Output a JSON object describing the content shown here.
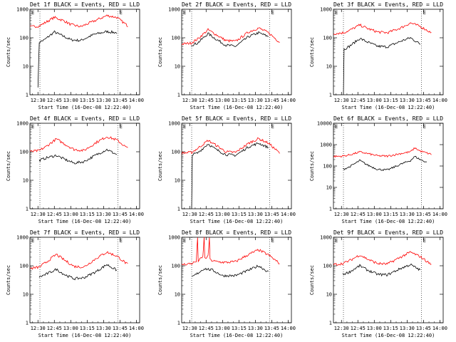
{
  "chart_data": [
    {
      "type": "line",
      "title": "Det 1f BLACK = Events, RED = LLD",
      "xlabel": "Start Time (16-Dec-08 12:22:40)",
      "ylabel": "Counts/sec",
      "ylim": [
        1,
        1000
      ],
      "ylog": true,
      "marker": "E",
      "x_ticks": [
        "12:30",
        "12:45",
        "13:00",
        "13:15",
        "13:30",
        "13:45",
        "14:00"
      ],
      "y_ticks": [
        "1",
        "10",
        "100",
        "1000"
      ],
      "series": [
        {
          "color": "#000000",
          "values": [
            [
              12.5,
              2
            ],
            [
              12.52,
              70
            ],
            [
              12.6,
              85
            ],
            [
              12.75,
              160
            ],
            [
              12.9,
              110
            ],
            [
              13.0,
              85
            ],
            [
              13.15,
              80
            ],
            [
              13.35,
              130
            ],
            [
              13.55,
              165
            ],
            [
              13.7,
              150
            ]
          ]
        },
        {
          "color": "#ff0000",
          "values": [
            [
              12.38,
              240
            ],
            [
              12.52,
              260
            ],
            [
              12.6,
              330
            ],
            [
              12.75,
              520
            ],
            [
              12.9,
              390
            ],
            [
              13.0,
              290
            ],
            [
              13.15,
              245
            ],
            [
              13.35,
              380
            ],
            [
              13.55,
              600
            ],
            [
              13.7,
              520
            ],
            [
              13.87,
              260
            ]
          ]
        }
      ]
    },
    {
      "type": "line",
      "title": "Det 2f BLACK = Events, RED = LLD",
      "xlabel": "Start Time (16-Dec-08 12:22:40)",
      "ylabel": "Counts/sec",
      "ylim": [
        1,
        1000
      ],
      "ylog": true,
      "marker": "E",
      "x_ticks": [
        "12:30",
        "12:45",
        "13:00",
        "13:15",
        "13:30",
        "13:45",
        "14:00"
      ],
      "y_ticks": [
        "1",
        "10",
        "100",
        "1000"
      ],
      "series": [
        {
          "color": "#000000",
          "values": [
            [
              12.52,
              55
            ],
            [
              12.62,
              65
            ],
            [
              12.78,
              140
            ],
            [
              12.9,
              90
            ],
            [
              13.05,
              55
            ],
            [
              13.2,
              50
            ],
            [
              13.4,
              110
            ],
            [
              13.55,
              150
            ],
            [
              13.7,
              110
            ]
          ]
        },
        {
          "color": "#ff0000",
          "values": [
            [
              12.38,
              60
            ],
            [
              12.52,
              65
            ],
            [
              12.62,
              90
            ],
            [
              12.78,
              190
            ],
            [
              12.9,
              130
            ],
            [
              13.05,
              80
            ],
            [
              13.2,
              75
            ],
            [
              13.4,
              160
            ],
            [
              13.55,
              220
            ],
            [
              13.7,
              150
            ],
            [
              13.87,
              70
            ]
          ]
        }
      ]
    },
    {
      "type": "line",
      "title": "Det 3f BLACK = Events, RED = LLD",
      "xlabel": "Start Time (16-Dec-08 12:22:40)",
      "ylabel": "Counts/sec",
      "ylim": [
        1,
        1000
      ],
      "ylog": true,
      "marker": "E",
      "x_ticks": [
        "12:30",
        "12:45",
        "13:00",
        "13:15",
        "13:30",
        "13:45",
        "14:00"
      ],
      "y_ticks": [
        "1",
        "10",
        "100",
        "1000"
      ],
      "series": [
        {
          "color": "#000000",
          "values": [
            [
              12.53,
              1
            ],
            [
              12.54,
              40
            ],
            [
              12.62,
              50
            ],
            [
              12.78,
              95
            ],
            [
              12.9,
              70
            ],
            [
              13.05,
              50
            ],
            [
              13.2,
              48
            ],
            [
              13.4,
              75
            ],
            [
              13.55,
              100
            ],
            [
              13.7,
              60
            ]
          ]
        },
        {
          "color": "#ff0000",
          "values": [
            [
              12.38,
              140
            ],
            [
              12.53,
              150
            ],
            [
              12.62,
              180
            ],
            [
              12.78,
              280
            ],
            [
              12.9,
              210
            ],
            [
              13.05,
              160
            ],
            [
              13.2,
              150
            ],
            [
              13.4,
              220
            ],
            [
              13.55,
              330
            ],
            [
              13.7,
              250
            ],
            [
              13.87,
              150
            ]
          ]
        }
      ]
    },
    {
      "type": "line",
      "title": "Det 4f BLACK = Events, RED = LLD",
      "xlabel": "Start Time (16-Dec-08 12:22:40)",
      "ylabel": "Counts/sec",
      "ylim": [
        1,
        1000
      ],
      "ylog": true,
      "marker": "E",
      "x_ticks": [
        "12:30",
        "12:45",
        "13:00",
        "13:15",
        "13:30",
        "13:45",
        "14:00"
      ],
      "y_ticks": [
        "1",
        "10",
        "100",
        "1000"
      ],
      "series": [
        {
          "color": "#000000",
          "values": [
            [
              12.52,
              50
            ],
            [
              12.62,
              60
            ],
            [
              12.78,
              75
            ],
            [
              12.9,
              55
            ],
            [
              13.05,
              40
            ],
            [
              13.2,
              45
            ],
            [
              13.4,
              80
            ],
            [
              13.55,
              120
            ],
            [
              13.7,
              80
            ]
          ]
        },
        {
          "color": "#ff0000",
          "values": [
            [
              12.38,
              100
            ],
            [
              12.52,
              110
            ],
            [
              12.62,
              150
            ],
            [
              12.78,
              280
            ],
            [
              12.9,
              190
            ],
            [
              13.05,
              120
            ],
            [
              13.2,
              110
            ],
            [
              13.4,
              220
            ],
            [
              13.55,
              340
            ],
            [
              13.7,
              260
            ],
            [
              13.87,
              130
            ]
          ]
        }
      ]
    },
    {
      "type": "line",
      "title": "Det 5f BLACK = Events, RED = LLD",
      "xlabel": "Start Time (16-Dec-08 12:22:40)",
      "ylabel": "Counts/sec",
      "ylim": [
        1,
        1000
      ],
      "ylog": true,
      "marker": "E",
      "x_ticks": [
        "12:30",
        "12:45",
        "13:00",
        "13:15",
        "13:30",
        "13:45",
        "14:00"
      ],
      "y_ticks": [
        "1",
        "10",
        "100",
        "1000"
      ],
      "series": [
        {
          "color": "#000000",
          "values": [
            [
              12.53,
              1
            ],
            [
              12.54,
              80
            ],
            [
              12.62,
              90
            ],
            [
              12.78,
              190
            ],
            [
              12.9,
              120
            ],
            [
              13.05,
              80
            ],
            [
              13.2,
              75
            ],
            [
              13.4,
              150
            ],
            [
              13.55,
              200
            ],
            [
              13.7,
              140
            ]
          ]
        },
        {
          "color": "#ff0000",
          "values": [
            [
              12.38,
              90
            ],
            [
              12.53,
              95
            ],
            [
              12.62,
              130
            ],
            [
              12.78,
              250
            ],
            [
              12.9,
              170
            ],
            [
              13.05,
              100
            ],
            [
              13.2,
              95
            ],
            [
              13.4,
              200
            ],
            [
              13.55,
              290
            ],
            [
              13.7,
              200
            ],
            [
              13.87,
              90
            ]
          ]
        }
      ]
    },
    {
      "type": "line",
      "title": "Det 6f BLACK = Events, RED = LLD",
      "xlabel": "Start Time (16-Dec-08 12:22:40)",
      "ylabel": "Counts/sec",
      "ylim": [
        1,
        10000
      ],
      "ylog": true,
      "marker": "E",
      "x_ticks": [
        "12:30",
        "12:45",
        "13:00",
        "13:15",
        "13:30",
        "13:45",
        "14:00"
      ],
      "y_ticks": [
        "1",
        "10",
        "100",
        "1000",
        "10000"
      ],
      "series": [
        {
          "color": "#000000",
          "values": [
            [
              12.52,
              70
            ],
            [
              12.62,
              90
            ],
            [
              12.78,
              180
            ],
            [
              12.9,
              110
            ],
            [
              13.05,
              70
            ],
            [
              13.2,
              65
            ],
            [
              13.4,
              120
            ],
            [
              13.55,
              180
            ],
            [
              13.62,
              280
            ],
            [
              13.7,
              200
            ],
            [
              13.8,
              150
            ]
          ]
        },
        {
          "color": "#ff0000",
          "values": [
            [
              12.38,
              280
            ],
            [
              12.52,
              290
            ],
            [
              12.62,
              330
            ],
            [
              12.78,
              450
            ],
            [
              12.9,
              380
            ],
            [
              13.05,
              300
            ],
            [
              13.2,
              290
            ],
            [
              13.4,
              380
            ],
            [
              13.55,
              460
            ],
            [
              13.62,
              700
            ],
            [
              13.7,
              500
            ],
            [
              13.87,
              350
            ]
          ]
        }
      ]
    },
    {
      "type": "line",
      "title": "Det 7f BLACK = Events, RED = LLD",
      "xlabel": "Start Time (16-Dec-08 12:22:40)",
      "ylabel": "Counts/sec",
      "ylim": [
        1,
        1000
      ],
      "ylog": true,
      "marker": "E",
      "x_ticks": [
        "12:30",
        "12:45",
        "13:00",
        "13:15",
        "13:30",
        "13:45",
        "14:00"
      ],
      "y_ticks": [
        "1",
        "10",
        "100",
        "1000"
      ],
      "series": [
        {
          "color": "#000000",
          "values": [
            [
              12.52,
              40
            ],
            [
              12.62,
              50
            ],
            [
              12.78,
              75
            ],
            [
              12.9,
              50
            ],
            [
              13.05,
              35
            ],
            [
              13.2,
              38
            ],
            [
              13.4,
              65
            ],
            [
              13.55,
              110
            ],
            [
              13.7,
              70
            ]
          ]
        },
        {
          "color": "#ff0000",
          "values": [
            [
              12.38,
              80
            ],
            [
              12.52,
              90
            ],
            [
              12.62,
              130
            ],
            [
              12.78,
              250
            ],
            [
              12.9,
              160
            ],
            [
              13.05,
              95
            ],
            [
              13.2,
              90
            ],
            [
              13.4,
              190
            ],
            [
              13.55,
              300
            ],
            [
              13.7,
              220
            ],
            [
              13.87,
              110
            ]
          ]
        }
      ]
    },
    {
      "type": "line",
      "title": "Det 8f BLACK = Events, RED = LLD",
      "xlabel": "Start Time (16-Dec-08 12:22:40)",
      "ylabel": "Counts/sec",
      "ylim": [
        1,
        1000
      ],
      "ylog": true,
      "marker": "E",
      "x_ticks": [
        "12:30",
        "12:45",
        "13:00",
        "13:15",
        "13:30",
        "13:45",
        "14:00"
      ],
      "y_ticks": [
        "1",
        "10",
        "100",
        "1000"
      ],
      "series": [
        {
          "color": "#000000",
          "values": [
            [
              12.53,
              40
            ],
            [
              12.6,
              50
            ],
            [
              12.72,
              80
            ],
            [
              12.85,
              70
            ],
            [
              13.0,
              45
            ],
            [
              13.2,
              45
            ],
            [
              13.4,
              70
            ],
            [
              13.55,
              100
            ],
            [
              13.7,
              60
            ]
          ]
        },
        {
          "color": "#ff0000",
          "values": [
            [
              12.38,
              110
            ],
            [
              12.53,
              120
            ],
            [
              12.6,
              140
            ],
            [
              12.62,
              1000
            ],
            [
              12.63,
              150
            ],
            [
              12.7,
              200
            ],
            [
              12.72,
              1000
            ],
            [
              12.73,
              180
            ],
            [
              12.78,
              210
            ],
            [
              12.8,
              1000
            ],
            [
              12.81,
              160
            ],
            [
              12.9,
              140
            ],
            [
              13.05,
              130
            ],
            [
              13.2,
              140
            ],
            [
              13.4,
              250
            ],
            [
              13.55,
              360
            ],
            [
              13.7,
              240
            ],
            [
              13.87,
              120
            ]
          ]
        }
      ]
    },
    {
      "type": "line",
      "title": "Det 9f BLACK = Events, RED = LLD",
      "xlabel": "Start Time (16-Dec-08 12:22:40)",
      "ylabel": "Counts/sec",
      "ylim": [
        1,
        1000
      ],
      "ylog": true,
      "marker": "E",
      "x_ticks": [
        "12:30",
        "12:45",
        "13:00",
        "13:15",
        "13:30",
        "13:45",
        "14:00"
      ],
      "y_ticks": [
        "1",
        "10",
        "100",
        "1000"
      ],
      "series": [
        {
          "color": "#000000",
          "values": [
            [
              12.52,
              50
            ],
            [
              12.62,
              60
            ],
            [
              12.78,
              100
            ],
            [
              12.9,
              70
            ],
            [
              13.05,
              50
            ],
            [
              13.2,
              48
            ],
            [
              13.4,
              80
            ],
            [
              13.55,
              110
            ],
            [
              13.7,
              70
            ]
          ]
        },
        {
          "color": "#ff0000",
          "values": [
            [
              12.38,
              110
            ],
            [
              12.52,
              120
            ],
            [
              12.62,
              150
            ],
            [
              12.78,
              240
            ],
            [
              12.9,
              170
            ],
            [
              13.05,
              120
            ],
            [
              13.2,
              115
            ],
            [
              13.4,
              200
            ],
            [
              13.55,
              300
            ],
            [
              13.7,
              210
            ],
            [
              13.87,
              110
            ]
          ]
        }
      ]
    }
  ]
}
